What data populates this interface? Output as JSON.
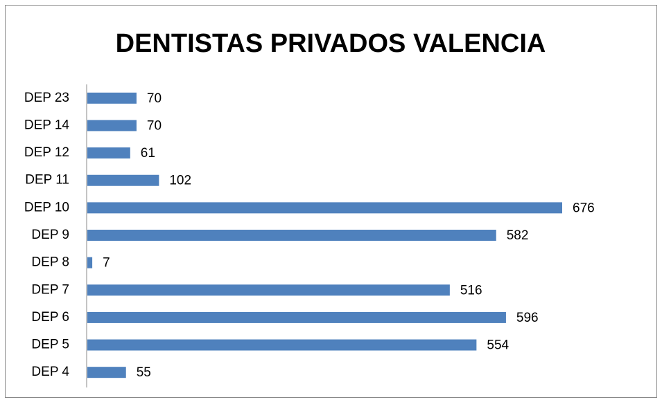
{
  "chart_data": {
    "type": "hbar",
    "title": "DENTISTAS PRIVADOS VALENCIA",
    "categories": [
      "DEP 23",
      "DEP 14",
      "DEP 12",
      "DEP 11",
      "DEP 10",
      "DEP 9",
      "DEP 8",
      "DEP 7",
      "DEP 6",
      "DEP 5",
      "DEP 4"
    ],
    "values": [
      70,
      70,
      61,
      102,
      676,
      582,
      7,
      516,
      596,
      554,
      55
    ],
    "color": "#4f81bd"
  }
}
